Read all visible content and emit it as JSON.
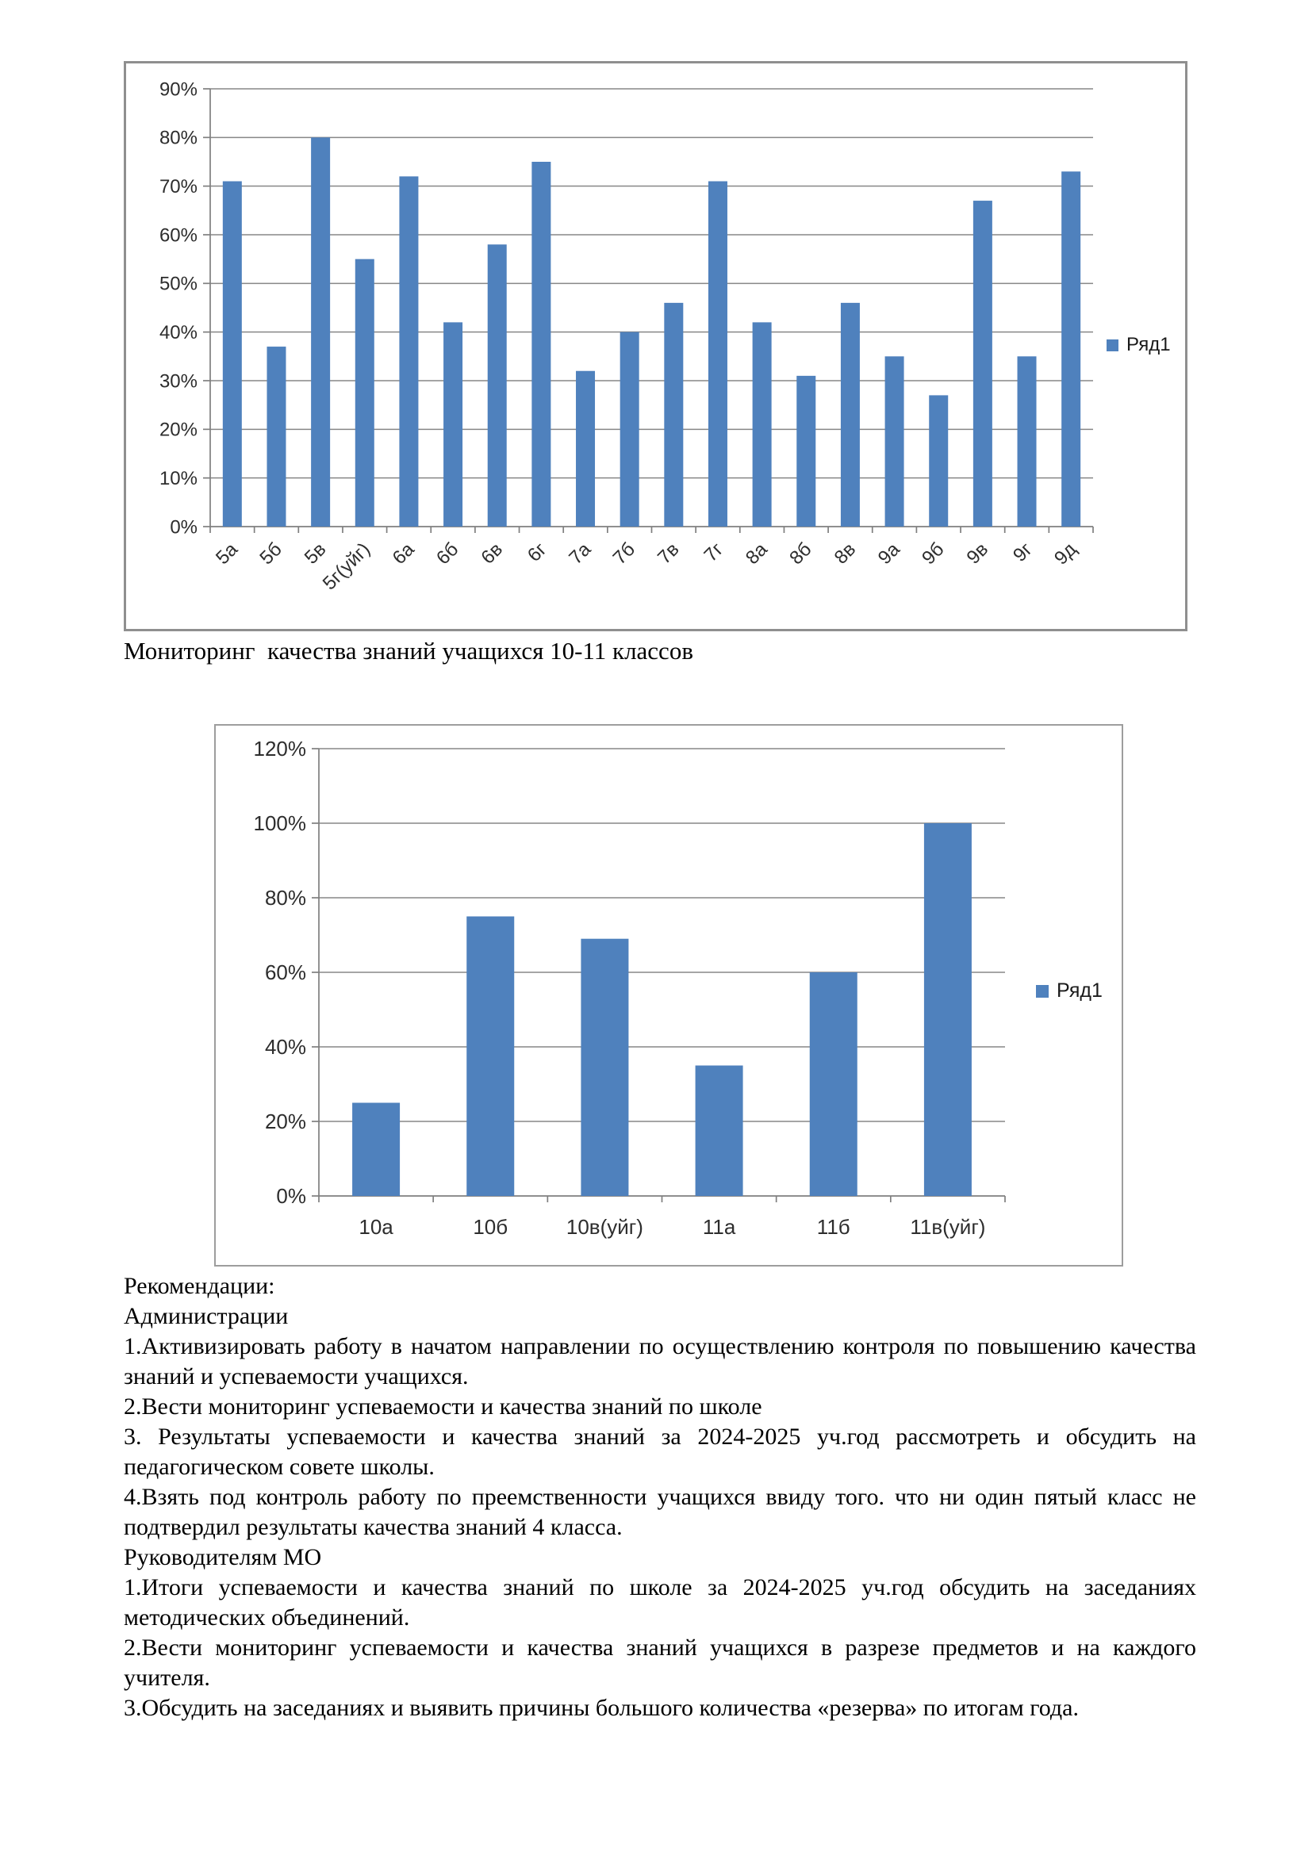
{
  "document": {
    "caption_chart2": "Мониторинг  качества знаний учащихся 10-11 классов",
    "recommendations": {
      "paragraphs": [
        "Рекомендации:",
        "Администрации",
        "1.Активизировать работу в начатом направлении по осуществлению контроля по повышению качества знаний и успеваемости учащихся.",
        "2.Вести мониторинг успеваемости и качества знаний по школе",
        "3. Результаты успеваемости и качества знаний за 2024-2025 уч.год рассмотреть и обсудить на педагогическом совете школы.",
        "4.Взять под контроль работу по преемственности учащихся ввиду того. что ни один пятый класс не подтвердил результаты качества знаний 4 класса.",
        "Руководителям МО",
        "1.Итоги успеваемости и качества знаний по школе за 2024-2025 уч.год обсудить на заседаниях методических объединений.",
        "2.Вести мониторинг успеваемости и качества знаний учащихся в разрезе предметов и на каждого учителя.",
        "3.Обсудить на заседаниях и выявить причины большого количества «резерва» по итогам года."
      ]
    }
  },
  "chart_data": [
    {
      "type": "bar",
      "title": "",
      "categories": [
        "5а",
        "5б",
        "5в",
        "5г(уйг)",
        "6а",
        "6б",
        "6в",
        "6г",
        "7а",
        "7б",
        "7в",
        "7г",
        "8а",
        "8б",
        "8в",
        "9а",
        "9б",
        "9в",
        "9г",
        "9д"
      ],
      "values": [
        71,
        37,
        80,
        55,
        72,
        42,
        58,
        75,
        32,
        40,
        46,
        71,
        42,
        31,
        46,
        35,
        27,
        67,
        35,
        73
      ],
      "unit": "%",
      "xlabel": "",
      "ylabel": "",
      "ylim": [
        0,
        90
      ],
      "ytick_step": 10,
      "grid": true,
      "legend": [
        "Ряд1"
      ],
      "legend_position": "right",
      "bar_color": "#4f81bd",
      "xtick_rotation": -45
    },
    {
      "type": "bar",
      "title": "",
      "categories": [
        "10а",
        "10б",
        "10в(уйг)",
        "11а",
        "11б",
        "11в(уйг)"
      ],
      "values": [
        25,
        75,
        69,
        35,
        60,
        100
      ],
      "unit": "%",
      "xlabel": "",
      "ylabel": "",
      "ylim": [
        0,
        120
      ],
      "ytick_step": 20,
      "grid": true,
      "legend": [
        "Ряд1"
      ],
      "legend_position": "right",
      "bar_color": "#4f81bd",
      "xtick_rotation": 0
    }
  ]
}
